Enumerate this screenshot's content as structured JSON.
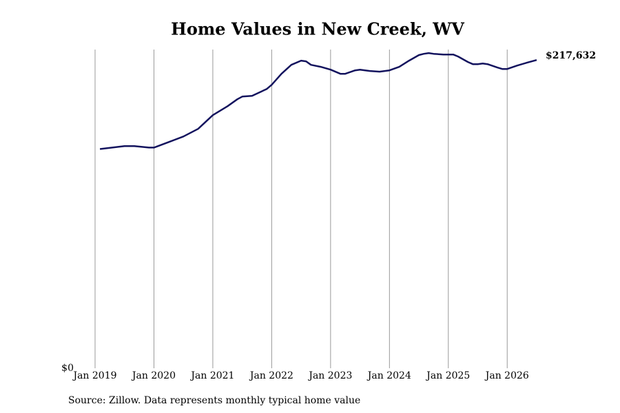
{
  "chart_data": {
    "type": "line",
    "title": "Home Values in New Creek, WV",
    "source": "Source: Zillow. Data represents monthly typical home value",
    "x": [
      "2019-02",
      "2019-07",
      "2019-09",
      "2019-12",
      "2020-01",
      "2020-04",
      "2020-07",
      "2020-10",
      "2021-01",
      "2021-04",
      "2021-06",
      "2021-07",
      "2021-09",
      "2021-12",
      "2022-01",
      "2022-03",
      "2022-05",
      "2022-07",
      "2022-08",
      "2022-09",
      "2022-11",
      "2023-01",
      "2023-03",
      "2023-04",
      "2023-06",
      "2023-07",
      "2023-09",
      "2023-11",
      "2024-01",
      "2024-03",
      "2024-05",
      "2024-07",
      "2024-08",
      "2024-09",
      "2024-10",
      "2024-12",
      "2025-01",
      "2025-02",
      "2025-03",
      "2025-05",
      "2025-06",
      "2025-07",
      "2025-08",
      "2025-09",
      "2025-11",
      "2025-12",
      "2026-01",
      "2026-03",
      "2026-05",
      "2026-07"
    ],
    "series": [
      {
        "name": "Typical home value",
        "color": "#13135e",
        "values": [
          154800,
          156800,
          156800,
          155800,
          155800,
          159700,
          163600,
          169000,
          178700,
          185000,
          189900,
          191800,
          192300,
          197200,
          200100,
          207900,
          214200,
          217200,
          216700,
          214200,
          212800,
          210800,
          207900,
          207900,
          210300,
          210800,
          209900,
          209400,
          210300,
          212800,
          217200,
          221100,
          222000,
          222500,
          222000,
          221500,
          221500,
          221500,
          220100,
          216200,
          214700,
          214700,
          215200,
          214700,
          212300,
          211300,
          211300,
          213700,
          215700,
          217632
        ],
        "value_labels": [
          null,
          null,
          null,
          null,
          null,
          null,
          null,
          null,
          null,
          null,
          null,
          null,
          null,
          null,
          null,
          null,
          null,
          null,
          null,
          null,
          null,
          null,
          null,
          null,
          null,
          null,
          null,
          null,
          null,
          null,
          null,
          null,
          null,
          null,
          null,
          null,
          null,
          null,
          null,
          null,
          null,
          null,
          null,
          null,
          null,
          null,
          null,
          null,
          null,
          "$217,632"
        ]
      }
    ],
    "xlim": [
      "2019-01",
      "2026-07"
    ],
    "xticks": [
      {
        "value": "2019-01",
        "label": "Jan 2019"
      },
      {
        "value": "2020-01",
        "label": "Jan 2020"
      },
      {
        "value": "2021-01",
        "label": "Jan 2021"
      },
      {
        "value": "2022-01",
        "label": "Jan 2022"
      },
      {
        "value": "2023-01",
        "label": "Jan 2023"
      },
      {
        "value": "2024-01",
        "label": "Jan 2024"
      },
      {
        "value": "2025-01",
        "label": "Jan 2025"
      },
      {
        "value": "2026-01",
        "label": "Jan 2026"
      }
    ],
    "ylim": [
      0,
      225000
    ],
    "yticks": [
      {
        "value": 0,
        "label": "$0"
      }
    ],
    "grid": "x"
  }
}
